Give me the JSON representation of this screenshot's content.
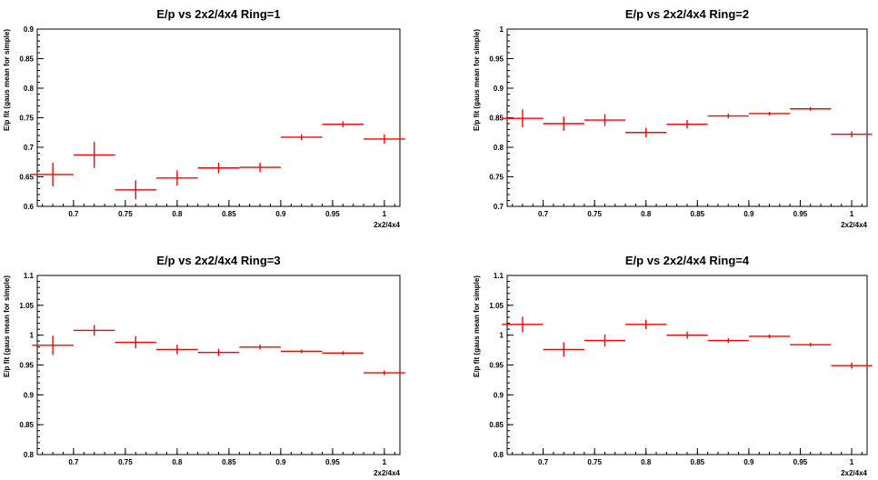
{
  "chart_data": [
    {
      "type": "scatter",
      "title": "E/p vs 2x2/4x4 Ring=1",
      "xlabel": "2x2/4x4",
      "ylabel": "E/p fit (gaus mean for simple)",
      "xlim": [
        0.665,
        1.015
      ],
      "ylim": [
        0.6,
        0.9
      ],
      "xticks": [
        "0.7",
        "0.75",
        "0.8",
        "0.85",
        "0.9",
        "0.95",
        "1"
      ],
      "yticks": [
        "0.6",
        "0.65",
        "0.7",
        "0.75",
        "0.8",
        "0.85",
        "0.9"
      ],
      "grid": false,
      "series": [
        {
          "color": "#ff0000",
          "x": [
            0.68,
            0.72,
            0.76,
            0.8,
            0.84,
            0.88,
            0.92,
            0.96,
            1.0
          ],
          "xerr": 0.02,
          "y": [
            0.654,
            0.687,
            0.628,
            0.648,
            0.665,
            0.666,
            0.717,
            0.739,
            0.714
          ],
          "yerr": [
            0.02,
            0.022,
            0.016,
            0.013,
            0.009,
            0.008,
            0.005,
            0.005,
            0.008
          ]
        }
      ]
    },
    {
      "type": "scatter",
      "title": "E/p vs 2x2/4x4 Ring=2",
      "xlabel": "2x2/4x4",
      "ylabel": "E/p fit (gaus mean for simple)",
      "xlim": [
        0.665,
        1.015
      ],
      "ylim": [
        0.7,
        1.0
      ],
      "xticks": [
        "0.7",
        "0.75",
        "0.8",
        "0.85",
        "0.9",
        "0.95",
        "1"
      ],
      "yticks": [
        "0.7",
        "0.75",
        "0.8",
        "0.85",
        "0.9",
        "0.95",
        "1"
      ],
      "grid": false,
      "series": [
        {
          "color": "#ff0000",
          "x": [
            0.68,
            0.72,
            0.76,
            0.8,
            0.84,
            0.88,
            0.92,
            0.96,
            1.0
          ],
          "xerr": 0.02,
          "y": [
            0.849,
            0.84,
            0.846,
            0.825,
            0.839,
            0.853,
            0.857,
            0.865,
            0.822
          ],
          "yerr": [
            0.015,
            0.012,
            0.01,
            0.008,
            0.007,
            0.004,
            0.003,
            0.003,
            0.005
          ]
        }
      ]
    },
    {
      "type": "scatter",
      "title": "E/p vs 2x2/4x4 Ring=3",
      "xlabel": "2x2/4x4",
      "ylabel": "E/p fit (gaus mean for simple)",
      "xlim": [
        0.665,
        1.015
      ],
      "ylim": [
        0.8,
        1.1
      ],
      "xticks": [
        "0.7",
        "0.75",
        "0.8",
        "0.85",
        "0.9",
        "0.95",
        "1"
      ],
      "yticks": [
        "0.8",
        "0.85",
        "0.9",
        "0.95",
        "1",
        "1.05",
        "1.1"
      ],
      "grid": false,
      "series": [
        {
          "color": "#ff0000",
          "x": [
            0.68,
            0.72,
            0.76,
            0.8,
            0.84,
            0.88,
            0.92,
            0.96,
            1.0
          ],
          "xerr": 0.02,
          "y": [
            0.983,
            1.008,
            0.988,
            0.976,
            0.971,
            0.98,
            0.973,
            0.97,
            0.937
          ],
          "yerr": [
            0.016,
            0.009,
            0.01,
            0.008,
            0.006,
            0.004,
            0.003,
            0.003,
            0.004
          ]
        }
      ]
    },
    {
      "type": "scatter",
      "title": "E/p vs 2x2/4x4 Ring=4",
      "xlabel": "2x2/4x4",
      "ylabel": "E/p fit (gaus mean for simple)",
      "xlim": [
        0.665,
        1.015
      ],
      "ylim": [
        0.8,
        1.1
      ],
      "xticks": [
        "0.7",
        "0.75",
        "0.8",
        "0.85",
        "0.9",
        "0.95",
        "1"
      ],
      "yticks": [
        "0.8",
        "0.85",
        "0.9",
        "0.95",
        "1",
        "1.05",
        "1.1"
      ],
      "grid": false,
      "series": [
        {
          "color": "#ff0000",
          "x": [
            0.68,
            0.72,
            0.76,
            0.8,
            0.84,
            0.88,
            0.92,
            0.96,
            1.0
          ],
          "xerr": 0.02,
          "y": [
            1.018,
            0.976,
            0.991,
            1.018,
            1.0,
            0.991,
            0.998,
            0.984,
            0.949
          ],
          "yerr": [
            0.013,
            0.012,
            0.01,
            0.008,
            0.006,
            0.004,
            0.003,
            0.003,
            0.005
          ]
        }
      ]
    }
  ]
}
